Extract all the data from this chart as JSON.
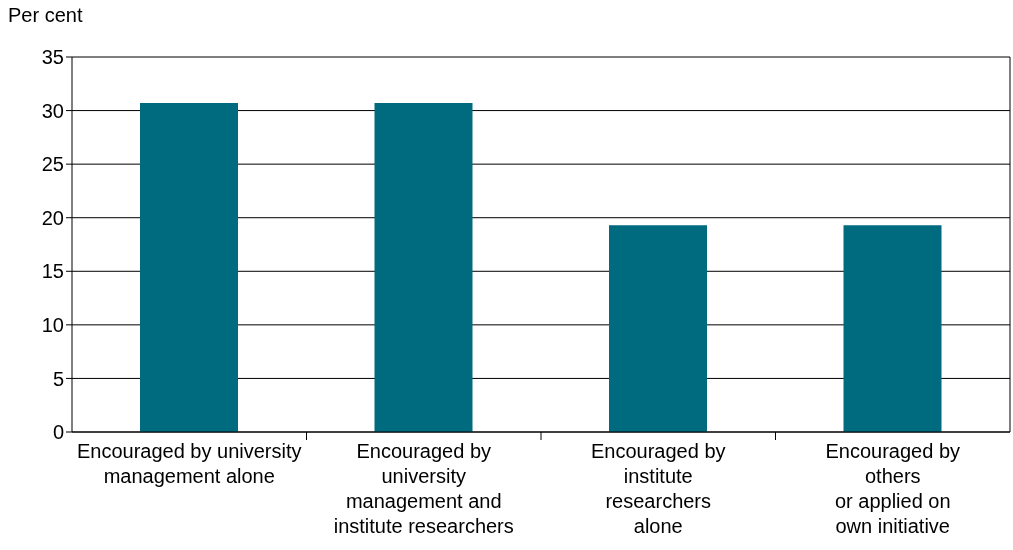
{
  "chart_data": {
    "type": "bar",
    "ylabel": "Per cent",
    "categories": [
      "Encouraged by university\nmanagement alone",
      "Encouraged by\nuniversity\nmanagement and\ninstitute researchers",
      "Encouraged by\ninstitute\nresearchers\nalone",
      "Encouraged by\nothers\nor applied on\nown initiative"
    ],
    "values": [
      30.7,
      30.7,
      19.3,
      19.3
    ],
    "color": "#006a7f",
    "ylim": [
      0,
      35
    ],
    "yticks": [
      0,
      5,
      10,
      15,
      20,
      25,
      30,
      35
    ],
    "grid": "y"
  }
}
